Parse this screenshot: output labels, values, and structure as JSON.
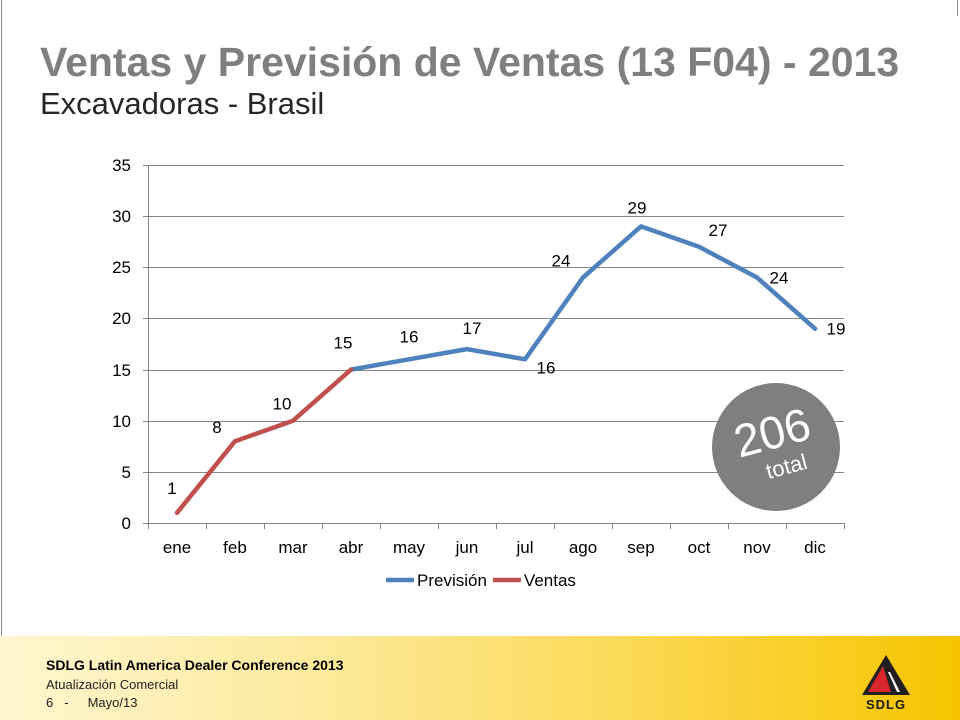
{
  "slide": {
    "title": "Ventas y Previsión de Ventas (13 F04) - 2013",
    "subtitle": "Excavadoras - Brasil"
  },
  "chart_data": {
    "type": "line",
    "categories": [
      "ene",
      "feb",
      "mar",
      "abr",
      "may",
      "jun",
      "jul",
      "ago",
      "sep",
      "oct",
      "nov",
      "dic"
    ],
    "series": [
      {
        "name": "Previsión",
        "color": "#4F81BD",
        "values": [
          null,
          null,
          null,
          15,
          16,
          17,
          16,
          24,
          29,
          27,
          24,
          19
        ]
      },
      {
        "name": "Ventas",
        "color": "#C0504D",
        "values": [
          1,
          8,
          10,
          15,
          null,
          null,
          null,
          null,
          null,
          null,
          null,
          null
        ]
      }
    ],
    "ylim": [
      0,
      35
    ],
    "yticks": [
      0,
      5,
      10,
      15,
      20,
      25,
      30,
      35
    ],
    "grid": "horizontal",
    "legend": "bottom",
    "data_labels": true
  },
  "total_badge": {
    "value": "206",
    "label": "total",
    "color": "#7F7F7F"
  },
  "footer": {
    "conference": "SDLG Latin America Dealer Conference 2013",
    "section": "Atualización Comercial",
    "page": "6",
    "separator": "-",
    "date": "Mayo/13",
    "logo_text": "SDLG"
  }
}
